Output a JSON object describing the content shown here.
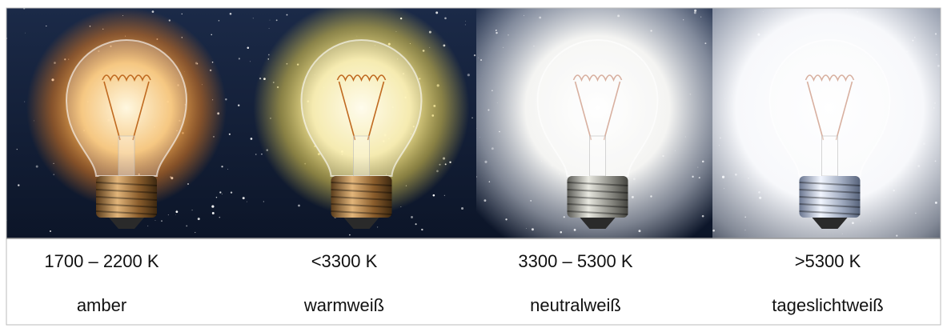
{
  "panels": [
    {
      "temperature": "1700 – 2200 K",
      "name": "amber"
    },
    {
      "temperature": "<3300 K",
      "name": "warmweiß"
    },
    {
      "temperature": "3300 – 5300 K",
      "name": "neutralweiß"
    },
    {
      "temperature": ">5300 K",
      "name": "tageslichtweiß"
    }
  ]
}
